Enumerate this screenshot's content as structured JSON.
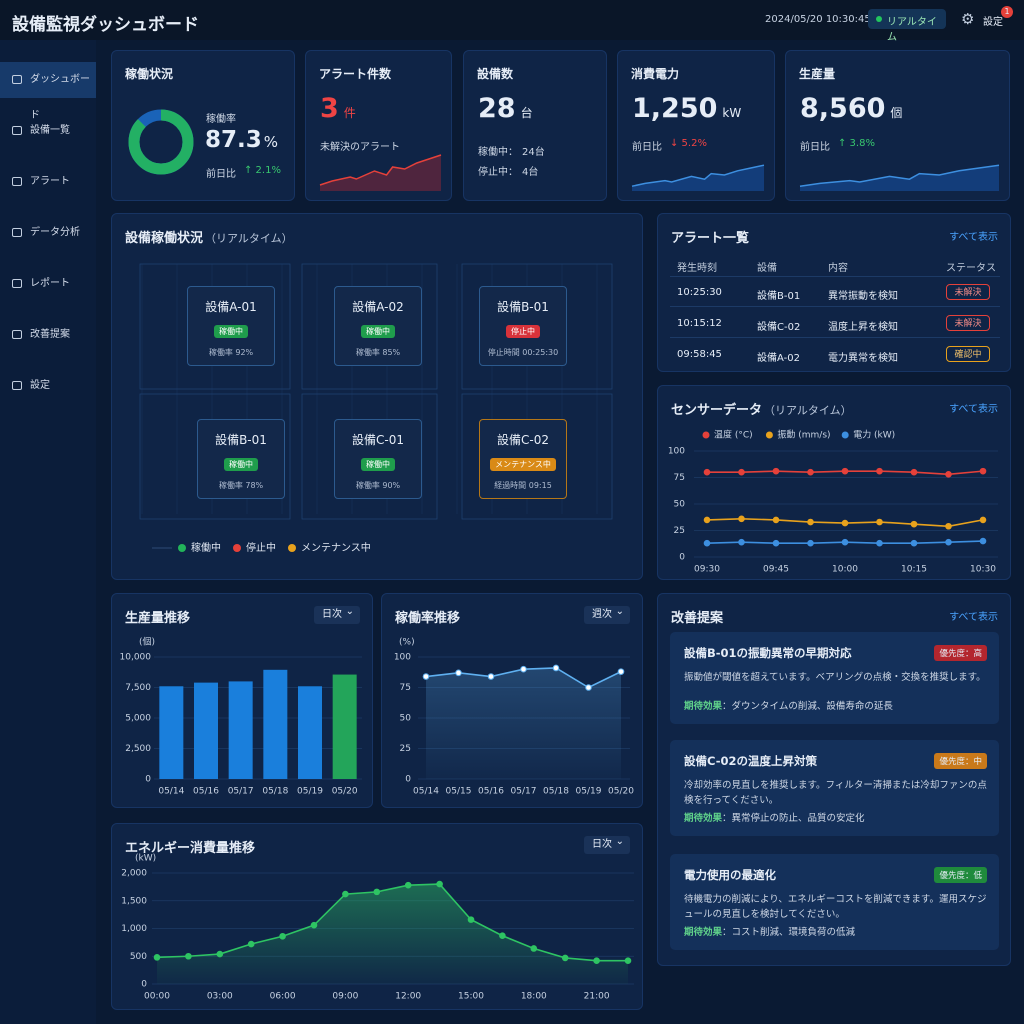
{
  "header": {
    "title": "設備監視ダッシュボード",
    "datetime": "2024/05/20 10:30:45",
    "status": "リアルタイム",
    "settings": "設定",
    "badge": "1"
  },
  "sidebar": [
    "ダッシュボード",
    "設備一覧",
    "アラート",
    "データ分析",
    "レポート",
    "改善提案",
    "設定"
  ],
  "kpis": [
    {
      "title": "稼働状況",
      "label": "稼働率",
      "value": 87.3,
      "unit": "%",
      "compare": "前日比",
      "change": "↑ 2.1%"
    },
    {
      "title": "アラート件数",
      "value": "3",
      "unit": "件",
      "note": "未解決のアラート"
    },
    {
      "title": "設備数",
      "value": "28",
      "unit": "台",
      "rows": [
        [
          "稼働中：",
          "24台"
        ],
        [
          "停止中：",
          "4台"
        ]
      ]
    },
    {
      "title": "消費電力",
      "value": "1,250",
      "unit": "kW",
      "compare": "前日比",
      "change": "↓ 5.2%"
    },
    {
      "title": "生産量",
      "value": "8,560",
      "unit": "個",
      "compare": "前日比",
      "change": "↑ 3.8%"
    }
  ],
  "map": {
    "title": "設備稼働状況",
    "subtitle": "（リアルタイム）",
    "machines": [
      {
        "name": "設備A-01",
        "status": "稼働中",
        "color": "#1f9d4c",
        "metric": "稼働率 92%"
      },
      {
        "name": "設備A-02",
        "status": "稼働中",
        "color": "#1f9d4c",
        "metric": "稼働率 85%"
      },
      {
        "name": "設備B-01",
        "status": "停止中",
        "color": "#d8323a",
        "metric": "停止時間 00:25:30"
      },
      {
        "name": "設備B-01",
        "status": "稼働中",
        "color": "#1f9d4c",
        "metric": "稼働率 78%"
      },
      {
        "name": "設備C-01",
        "status": "稼働中",
        "color": "#1f9d4c",
        "metric": "稼働率 90%"
      },
      {
        "name": "設備C-02",
        "status": "メンテナンス中",
        "color": "#d98a16",
        "metric": "経過時間 09:15"
      }
    ],
    "legend": [
      {
        "label": "稼働中",
        "color": "#22b35a"
      },
      {
        "label": "停止中",
        "color": "#e5413a"
      },
      {
        "label": "メンテナンス中",
        "color": "#e8a21d"
      }
    ]
  },
  "alerts": {
    "title": "アラート一覧",
    "link": "すべて表示",
    "headers": [
      "発生時刻",
      "設備",
      "内容",
      "ステータス"
    ],
    "rows": [
      [
        "10:25:30",
        "設備B-01",
        "異常振動を検知",
        "未解決"
      ],
      [
        "10:15:12",
        "設備C-02",
        "温度上昇を検知",
        "未解決"
      ],
      [
        "09:58:45",
        "設備A-02",
        "電力異常を検知",
        "確認中"
      ]
    ],
    "status_colors": [
      "#e5413a",
      "#e5413a",
      "#e8a21d"
    ]
  },
  "chart_data": [
    {
      "type": "line",
      "title": "センサーデータ",
      "subtitle": "（リアルタイム）",
      "link": "すべて表示",
      "categories": [
        "09:30",
        null,
        "09:45",
        null,
        "10:00",
        null,
        "10:15",
        null,
        "10:30"
      ],
      "series": [
        {
          "name": "温度 (°C)",
          "color": "#e5413a",
          "values": [
            80,
            80,
            81,
            80,
            81,
            81,
            80,
            78,
            81
          ]
        },
        {
          "name": "振動 (mm/s)",
          "color": "#e8a21d",
          "values": [
            35,
            36,
            35,
            33,
            32,
            33,
            31,
            29,
            35
          ]
        },
        {
          "name": "電力 (kW)",
          "color": "#3d8fe0",
          "values": [
            13,
            14,
            13,
            13,
            14,
            13,
            13,
            14,
            15
          ]
        }
      ],
      "ylim": [
        0,
        100
      ],
      "yticks": [
        0,
        25,
        50,
        75,
        100
      ],
      "grid": true
    },
    {
      "type": "bar",
      "title": "生産量推移",
      "period": "日次",
      "y_label": "(個)",
      "categories": [
        "05/14",
        "05/16",
        "05/17",
        "05/18",
        "05/19",
        "05/20"
      ],
      "values": [
        7600,
        7900,
        8000,
        8950,
        7600,
        8560
      ],
      "colors": [
        "#1a7fdc",
        "#1a7fdc",
        "#1a7fdc",
        "#1a7fdc",
        "#1a7fdc",
        "#23a55a"
      ],
      "ylim": [
        0,
        10000
      ],
      "yticks": [
        0,
        {
          "value": 2500,
          "label": "2,500"
        },
        {
          "value": 5000,
          "label": "5,000"
        },
        {
          "value": 7500,
          "label": "7,500"
        },
        {
          "value": 10000,
          "label": "10,000"
        }
      ],
      "grid": true
    },
    {
      "type": "line",
      "title": "稼働率推移",
      "period": "週次",
      "y_label": "(%)",
      "categories": [
        "05/14",
        "05/15",
        "05/16",
        "05/17",
        "05/18",
        "05/19",
        "05/20"
      ],
      "values": [
        84,
        87,
        84,
        90,
        91,
        75,
        88
      ],
      "color": "#5fb0f0",
      "ylim": [
        0,
        100
      ],
      "yticks": [
        0,
        25,
        50,
        75,
        100
      ],
      "grid": true
    },
    {
      "type": "area",
      "title": "エネルギー消費量推移",
      "period": "日次",
      "y_label": "(kW)",
      "categories": [
        "00:00",
        null,
        "03:00",
        null,
        "06:00",
        null,
        "09:00",
        null,
        "12:00",
        null,
        "15:00",
        null,
        "18:00",
        null,
        "21:00",
        null
      ],
      "values": [
        480,
        500,
        540,
        720,
        860,
        1060,
        1620,
        1660,
        1780,
        1800,
        1160,
        870,
        640,
        470,
        420,
        420
      ],
      "color": "#2ec463",
      "ylim": [
        0,
        2000
      ],
      "yticks": [
        0,
        500,
        {
          "value": 1000,
          "label": "1,000"
        },
        {
          "value": 1500,
          "label": "1,500"
        },
        {
          "value": 2000,
          "label": "2,000"
        }
      ],
      "grid": true
    }
  ],
  "improvements": {
    "title": "改善提案",
    "link": "すべて表示",
    "effect_label": "期待効果",
    "items": [
      {
        "title": "設備B-01の振動異常の早期対応",
        "priority": "優先度：高",
        "color": "#b3262e",
        "desc": "振動値が閾値を超えています。ベアリングの点検・交換を推奨します。",
        "effect": "：ダウンタイムの削減、設備寿命の延長"
      },
      {
        "title": "設備C-02の温度上昇対策",
        "priority": "優先度：中",
        "color": "#c9791a",
        "desc": "冷却効率の見直しを推奨します。フィルター清掃または冷却ファンの点検を行ってください。",
        "effect": "：異常停止の防止、品質の安定化"
      },
      {
        "title": "電力使用の最適化",
        "priority": "優先度：低",
        "color": "#1f8a3c",
        "desc": "待機電力の削減により、エネルギーコストを削減できます。運用スケジュールの見直しを検討してください。",
        "effect": "：コスト削減、環境負荷の低減"
      }
    ]
  }
}
